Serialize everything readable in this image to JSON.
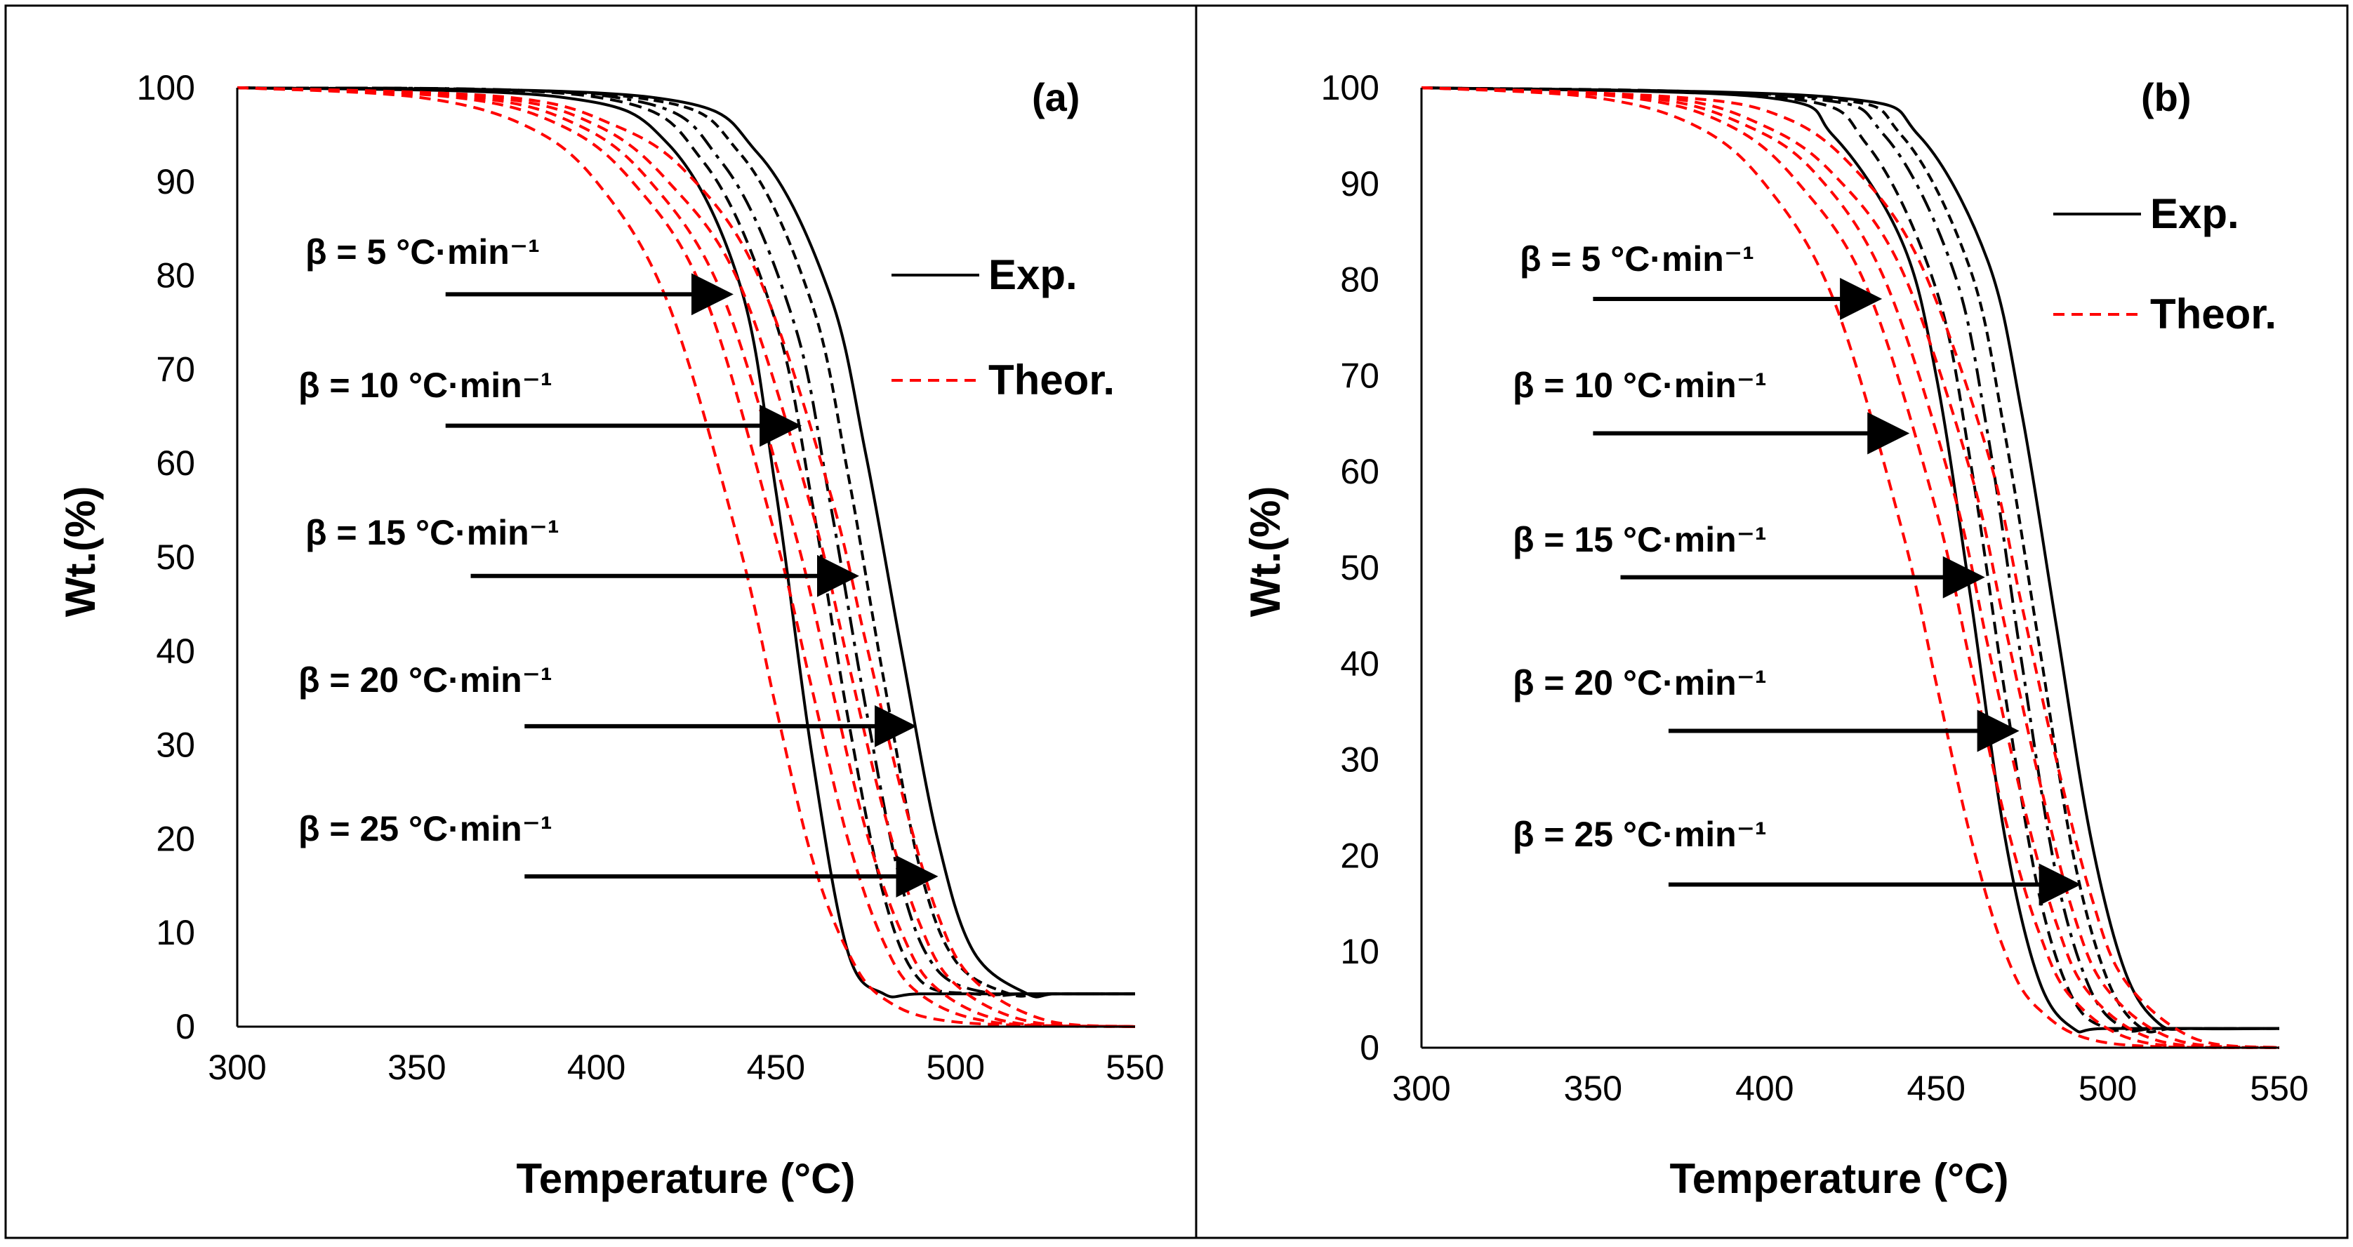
{
  "chart_data": [
    {
      "type": "line",
      "panel_label": "(a)",
      "xlabel": "Temperature (°C)",
      "ylabel": "Wt.(%)",
      "xlim": [
        300,
        550
      ],
      "ylim": [
        0,
        100
      ],
      "x_ticks": [
        "300",
        "350",
        "400",
        "450",
        "500",
        "550"
      ],
      "y_ticks": [
        "0",
        "10",
        "20",
        "30",
        "40",
        "50",
        "60",
        "70",
        "80",
        "90",
        "100"
      ],
      "legend": [
        {
          "label": "Exp.",
          "color": "#000000",
          "style": "solid"
        },
        {
          "label": "Theor.",
          "color": "#ff0000",
          "style": "dashed"
        }
      ],
      "series": [
        {
          "name": "β = 5 °C·min⁻¹",
          "kind": "exp",
          "x": [
            300,
            390,
            420,
            440,
            450,
            460,
            470,
            480,
            490,
            520,
            550
          ],
          "y": [
            100,
            99,
            94,
            79,
            57,
            29,
            8,
            3.5,
            3.5,
            3.5,
            3.5
          ]
        },
        {
          "name": "β = 10 °C·min⁻¹",
          "kind": "exp",
          "x": [
            300,
            400,
            430,
            450,
            460,
            470,
            480,
            490,
            505,
            520,
            550
          ],
          "y": [
            100,
            99,
            92,
            75,
            56,
            33,
            14,
            5,
            3.5,
            3.5,
            3.5
          ]
        },
        {
          "name": "β = 15 °C·min⁻¹",
          "kind": "exp",
          "x": [
            300,
            405,
            435,
            455,
            465,
            475,
            485,
            495,
            510,
            520,
            550
          ],
          "y": [
            100,
            99,
            92,
            75,
            56,
            34,
            15,
            6,
            3.5,
            3.5,
            3.5
          ]
        },
        {
          "name": "β = 20 °C·min⁻¹",
          "kind": "exp",
          "x": [
            300,
            410,
            440,
            460,
            470,
            480,
            490,
            500,
            515,
            525,
            550
          ],
          "y": [
            100,
            99,
            93,
            77,
            59,
            37,
            17,
            7,
            3.5,
            3.5,
            3.5
          ]
        },
        {
          "name": "β = 25 °C·min⁻¹",
          "kind": "exp",
          "x": [
            300,
            415,
            445,
            465,
            475,
            485,
            495,
            505,
            520,
            528,
            550
          ],
          "y": [
            100,
            99,
            93,
            78,
            61,
            40,
            20,
            8,
            3.5,
            3.5,
            3.5
          ]
        },
        {
          "name": "β = 5 °C·min⁻¹",
          "kind": "theor",
          "x": [
            300,
            350,
            380,
            400,
            420,
            440,
            450,
            460,
            470,
            480,
            500,
            550
          ],
          "y": [
            100,
            99,
            96,
            90,
            77,
            51,
            34,
            18,
            8,
            3,
            0.5,
            0
          ]
        },
        {
          "name": "β = 10 °C·min⁻¹",
          "kind": "theor",
          "x": [
            300,
            360,
            390,
            410,
            430,
            450,
            460,
            470,
            480,
            490,
            510,
            550
          ],
          "y": [
            100,
            99,
            96,
            90,
            78,
            52,
            36,
            20,
            9,
            3.5,
            0.5,
            0
          ]
        },
        {
          "name": "β = 15 °C·min⁻¹",
          "kind": "theor",
          "x": [
            300,
            365,
            395,
            415,
            435,
            455,
            465,
            475,
            485,
            495,
            515,
            550
          ],
          "y": [
            100,
            99,
            96,
            90,
            78,
            53,
            37,
            21,
            10,
            4,
            0.5,
            0
          ]
        },
        {
          "name": "β = 20 °C·min⁻¹",
          "kind": "theor",
          "x": [
            300,
            370,
            400,
            420,
            440,
            460,
            470,
            480,
            490,
            500,
            520,
            550
          ],
          "y": [
            100,
            99,
            96,
            90,
            79,
            55,
            39,
            23,
            11,
            4.5,
            0.6,
            0
          ]
        },
        {
          "name": "β = 25 °C·min⁻¹",
          "kind": "theor",
          "x": [
            300,
            375,
            405,
            425,
            445,
            465,
            475,
            485,
            495,
            505,
            525,
            550
          ],
          "y": [
            100,
            99,
            96,
            91,
            80,
            57,
            41,
            25,
            12,
            5,
            0.7,
            0
          ]
        }
      ],
      "annotations": [
        {
          "label": "β = 5 °C·min⁻¹",
          "arrow_from": [
            358,
            78
          ],
          "arrow_to": [
            437,
            78
          ]
        },
        {
          "label": "β = 10 °C·min⁻¹",
          "arrow_from": [
            358,
            64
          ],
          "arrow_to": [
            456,
            64
          ]
        },
        {
          "label": "β = 15 °C·min⁻¹",
          "arrow_from": [
            365,
            48
          ],
          "arrow_to": [
            472,
            48
          ]
        },
        {
          "label": "β = 20 °C·min⁻¹",
          "arrow_from": [
            380,
            32
          ],
          "arrow_to": [
            488,
            32
          ]
        },
        {
          "label": "β = 25 °C·min⁻¹",
          "arrow_from": [
            380,
            16
          ],
          "arrow_to": [
            494,
            16
          ]
        }
      ]
    },
    {
      "type": "line",
      "panel_label": "(b)",
      "xlabel": "Temperature (°C)",
      "ylabel": "Wt.(%)",
      "xlim": [
        300,
        550
      ],
      "ylim": [
        0,
        100
      ],
      "x_ticks": [
        "300",
        "350",
        "400",
        "450",
        "500",
        "550"
      ],
      "y_ticks": [
        "0",
        "10",
        "20",
        "30",
        "40",
        "50",
        "60",
        "70",
        "80",
        "90",
        "100"
      ],
      "legend": [
        {
          "label": "Exp.",
          "color": "#000000",
          "style": "solid"
        },
        {
          "label": "Theor.",
          "color": "#ff0000",
          "style": "dashed"
        }
      ],
      "series": [
        {
          "name": "β = 5 °C·min⁻¹",
          "kind": "exp",
          "x": [
            300,
            400,
            420,
            440,
            450,
            460,
            470,
            480,
            490,
            500,
            550
          ],
          "y": [
            100,
            99,
            95,
            84,
            70,
            47,
            22,
            7,
            2,
            2,
            2
          ]
        },
        {
          "name": "β = 10 °C·min⁻¹",
          "kind": "exp",
          "x": [
            300,
            405,
            430,
            450,
            460,
            470,
            480,
            490,
            500,
            510,
            550
          ],
          "y": [
            100,
            99,
            94,
            79,
            61,
            37,
            16,
            5,
            2,
            2,
            2
          ]
        },
        {
          "name": "β = 15 °C·min⁻¹",
          "kind": "exp",
          "x": [
            300,
            410,
            435,
            455,
            465,
            475,
            485,
            495,
            505,
            515,
            550
          ],
          "y": [
            100,
            99,
            95,
            81,
            64,
            40,
            18,
            6,
            2,
            2,
            2
          ]
        },
        {
          "name": "β = 20 °C·min⁻¹",
          "kind": "exp",
          "x": [
            300,
            415,
            440,
            460,
            470,
            480,
            490,
            500,
            510,
            520,
            550
          ],
          "y": [
            100,
            99,
            95,
            81,
            64,
            42,
            20,
            7,
            2,
            2,
            2
          ]
        },
        {
          "name": "β = 25 °C·min⁻¹",
          "kind": "exp",
          "x": [
            300,
            420,
            445,
            465,
            475,
            485,
            495,
            505,
            515,
            525,
            550
          ],
          "y": [
            100,
            99,
            95,
            82,
            66,
            44,
            22,
            8,
            2.5,
            2,
            2
          ]
        },
        {
          "name": "β = 5 °C·min⁻¹",
          "kind": "theor",
          "x": [
            300,
            350,
            380,
            400,
            420,
            440,
            450,
            460,
            470,
            480,
            500,
            550
          ],
          "y": [
            100,
            99,
            96,
            90,
            78,
            54,
            38,
            22,
            10,
            4,
            0.5,
            0
          ]
        },
        {
          "name": "β = 10 °C·min⁻¹",
          "kind": "theor",
          "x": [
            300,
            360,
            390,
            410,
            430,
            450,
            460,
            470,
            480,
            490,
            510,
            550
          ],
          "y": [
            100,
            99,
            96,
            90,
            79,
            56,
            40,
            24,
            12,
            5,
            0.6,
            0
          ]
        },
        {
          "name": "β = 15 °C·min⁻¹",
          "kind": "theor",
          "x": [
            300,
            365,
            395,
            415,
            435,
            455,
            465,
            475,
            485,
            495,
            515,
            550
          ],
          "y": [
            100,
            99,
            96,
            91,
            80,
            58,
            42,
            26,
            13,
            5.5,
            0.7,
            0
          ]
        },
        {
          "name": "β = 20 °C·min⁻¹",
          "kind": "theor",
          "x": [
            300,
            370,
            400,
            420,
            440,
            460,
            470,
            480,
            490,
            500,
            520,
            550
          ],
          "y": [
            100,
            99,
            96,
            91,
            81,
            60,
            44,
            28,
            14,
            6,
            0.8,
            0
          ]
        },
        {
          "name": "β = 25 °C·min⁻¹",
          "kind": "theor",
          "x": [
            300,
            375,
            405,
            425,
            445,
            465,
            475,
            485,
            495,
            505,
            525,
            550
          ],
          "y": [
            100,
            99,
            97,
            92,
            82,
            62,
            46,
            30,
            16,
            7,
            1,
            0
          ]
        }
      ],
      "annotations": [
        {
          "label": "β = 5 °C·min⁻¹",
          "arrow_from": [
            350,
            78
          ],
          "arrow_to": [
            433,
            78
          ]
        },
        {
          "label": "β = 10 °C·min⁻¹",
          "arrow_from": [
            350,
            64
          ],
          "arrow_to": [
            441,
            64
          ]
        },
        {
          "label": "β = 15 °C·min⁻¹",
          "arrow_from": [
            358,
            49
          ],
          "arrow_to": [
            463,
            49
          ]
        },
        {
          "label": "β = 20 °C·min⁻¹",
          "arrow_from": [
            372,
            33
          ],
          "arrow_to": [
            473,
            33
          ]
        },
        {
          "label": "β = 25 °C·min⁻¹",
          "arrow_from": [
            372,
            17
          ],
          "arrow_to": [
            491,
            17
          ]
        }
      ]
    }
  ]
}
